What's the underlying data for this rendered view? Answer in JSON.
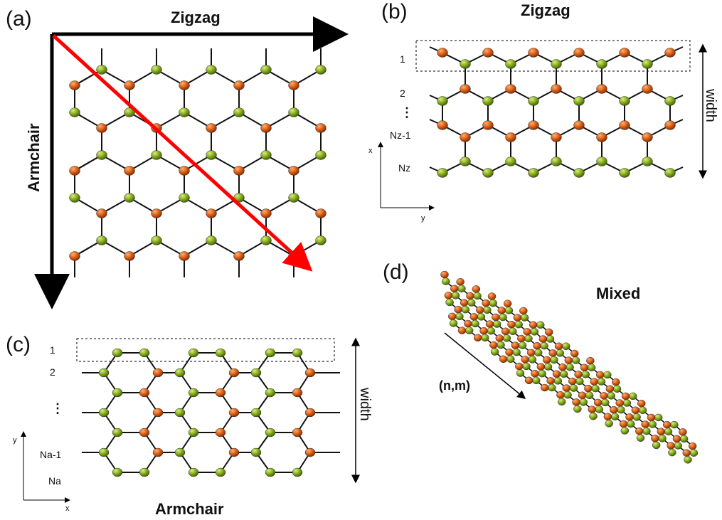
{
  "panels": {
    "a": {
      "label": "(a)",
      "top_direction": "Zigzag",
      "side_direction": "Armchair"
    },
    "b": {
      "label": "(b)",
      "title": "Zigzag",
      "row_labels": [
        "1",
        "2",
        "⋮",
        "Nz-1",
        "Nz"
      ],
      "width_label": "width",
      "axis_x": "x",
      "axis_y": "y"
    },
    "c": {
      "label": "(c)",
      "title": "Armchair",
      "row_labels": [
        "1",
        "2",
        "⋮",
        "Na-1",
        "Na"
      ],
      "width_label": "width",
      "axis_x": "x",
      "axis_y": "y"
    },
    "d": {
      "label": "(d)",
      "title": "Mixed",
      "vector_label": "(n,m)"
    }
  },
  "colors": {
    "atom_a": "#d65a12",
    "atom_b": "#7fa51a",
    "bond": "#111111",
    "chiral_arrow": "#ff0000",
    "arrow": "#000000"
  }
}
